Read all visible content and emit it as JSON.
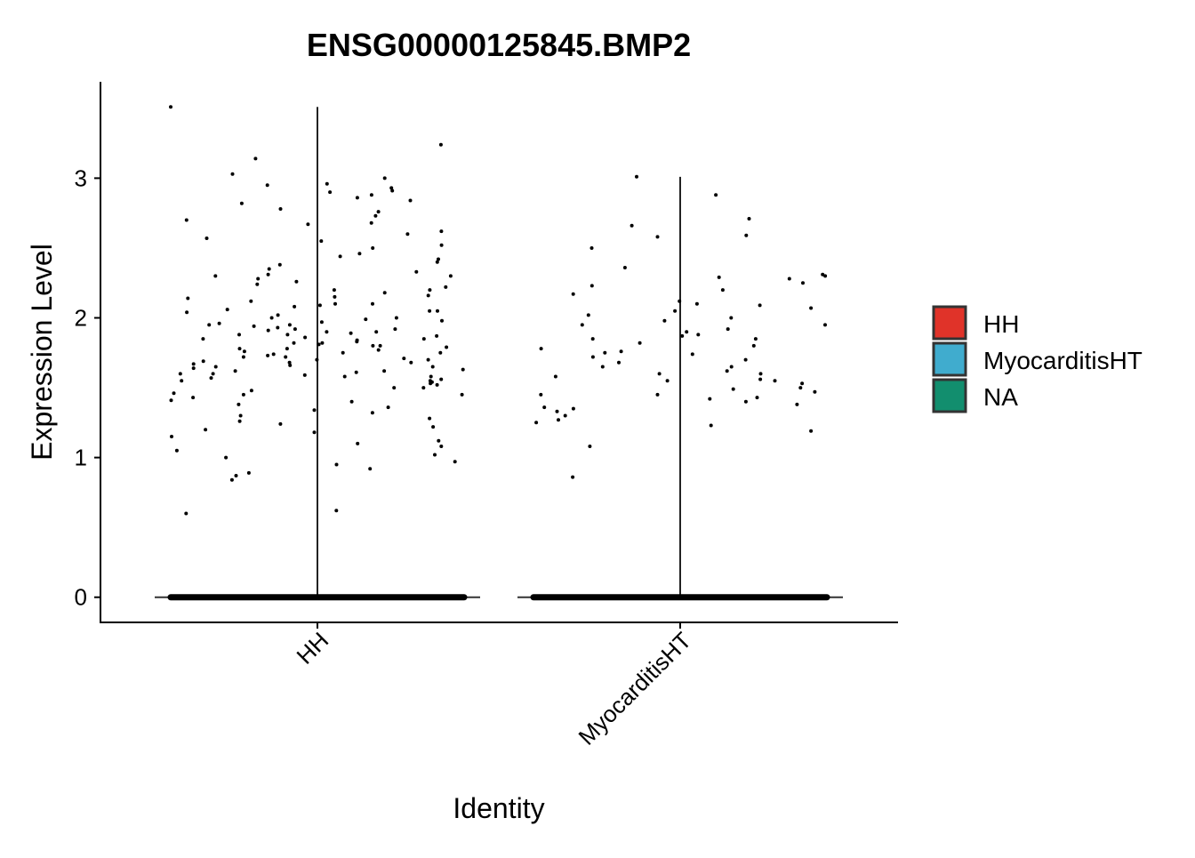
{
  "chart_data": {
    "type": "violin",
    "title": "ENSG00000125845.BMP2",
    "xlabel": "Identity",
    "ylabel": "Expression Level",
    "ylim": [
      -0.18,
      3.69
    ],
    "yticks": [
      "0",
      "1",
      "2",
      "3"
    ],
    "categories": [
      "HH",
      "MyocarditisHT"
    ],
    "grid": false,
    "legend": {
      "placement": "right",
      "entries": [
        {
          "label": "HH",
          "color": "#E03329"
        },
        {
          "label": "MyocarditisHT",
          "color": "#40ACCE"
        },
        {
          "label": "NA",
          "color": "#128E6E"
        }
      ]
    },
    "series": [
      {
        "category": "HH",
        "violin_max": 3.51,
        "points_nonzero": [
          3.51,
          3.24,
          3.14,
          3.03,
          3.0,
          2.96,
          2.95,
          2.93,
          2.91,
          2.9,
          2.88,
          2.86,
          2.84,
          2.82,
          2.78,
          2.76,
          2.73,
          2.7,
          2.68,
          2.67,
          2.62,
          2.6,
          2.57,
          2.55,
          2.52,
          2.5,
          2.46,
          2.44,
          2.42,
          2.4,
          2.38,
          2.35,
          2.33,
          2.31,
          2.3,
          2.28,
          2.26,
          2.24,
          2.22,
          2.2,
          2.18,
          2.16,
          2.14,
          2.12,
          2.1,
          2.09,
          2.08,
          2.06,
          2.05,
          2.04,
          2.02,
          2.0,
          1.99,
          1.98,
          1.97,
          1.96,
          1.95,
          1.94,
          1.93,
          1.92,
          1.91,
          1.9,
          1.89,
          1.88,
          1.87,
          1.86,
          1.85,
          1.84,
          1.83,
          1.82,
          1.81,
          1.8,
          1.79,
          1.78,
          1.77,
          1.76,
          1.75,
          1.74,
          1.73,
          1.72,
          1.71,
          1.7,
          1.69,
          1.68,
          1.67,
          1.66,
          1.65,
          1.64,
          1.63,
          1.62,
          1.61,
          1.6,
          1.59,
          1.58,
          1.57,
          1.56,
          1.55,
          1.54,
          1.53,
          1.52,
          1.5,
          1.48,
          1.46,
          1.45,
          1.43,
          1.41,
          1.4,
          1.38,
          1.36,
          1.34,
          1.32,
          1.3,
          1.28,
          1.26,
          1.24,
          1.22,
          1.2,
          1.18,
          1.15,
          1.12,
          1.1,
          1.08,
          1.05,
          1.02,
          1.0,
          0.97,
          0.95,
          0.92,
          0.89,
          0.87,
          0.84,
          0.62,
          0.6,
          2.0,
          1.9,
          1.8,
          1.7,
          1.6,
          1.85,
          1.75,
          1.95,
          2.1,
          1.65,
          1.55,
          2.2,
          1.5,
          1.45,
          2.3,
          1.92,
          1.82,
          1.72,
          1.62,
          2.05,
          1.88,
          1.78,
          1.68,
          1.58,
          2.15
        ],
        "zero_range": [
          0,
          0
        ]
      },
      {
        "category": "MyocarditisHT",
        "violin_max": 3.01,
        "points_nonzero": [
          3.01,
          2.88,
          2.71,
          2.66,
          2.59,
          2.58,
          2.5,
          2.36,
          2.31,
          2.3,
          2.29,
          2.28,
          2.25,
          2.23,
          2.2,
          2.17,
          2.12,
          2.1,
          2.09,
          2.07,
          2.05,
          2.02,
          1.98,
          1.95,
          1.92,
          1.9,
          1.88,
          1.87,
          1.85,
          1.82,
          1.8,
          1.78,
          1.76,
          1.74,
          1.72,
          1.7,
          1.68,
          1.65,
          1.62,
          1.6,
          1.58,
          1.56,
          1.55,
          1.53,
          1.5,
          1.49,
          1.47,
          1.45,
          1.43,
          1.42,
          1.4,
          1.38,
          1.36,
          1.35,
          1.33,
          1.3,
          1.27,
          1.25,
          1.23,
          1.19,
          1.08,
          0.86,
          1.85,
          1.65,
          1.75,
          1.55,
          1.95,
          1.45,
          2.0,
          1.6
        ],
        "zero_range": [
          0,
          0
        ]
      }
    ]
  }
}
